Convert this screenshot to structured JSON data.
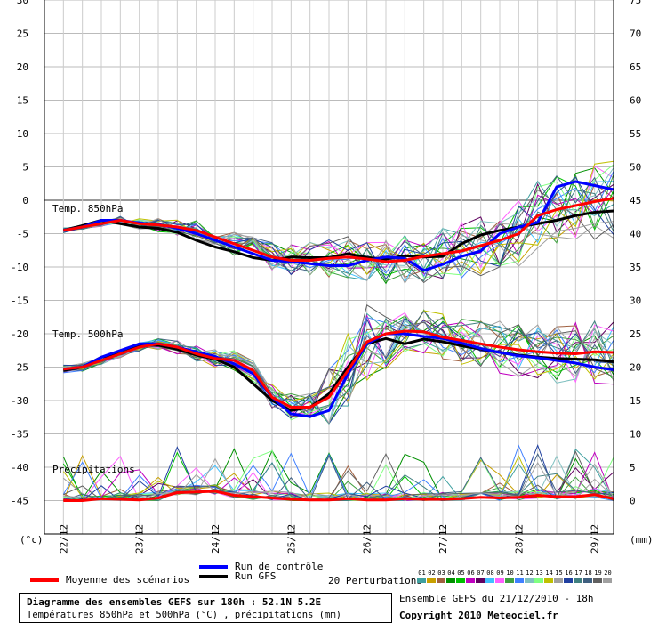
{
  "chart_data": {
    "type": "line",
    "x_labels": [
      "22/12",
      "23/12",
      "24/12",
      "25/12",
      "26/12",
      "27/12",
      "28/12",
      "29/12"
    ],
    "left_axis": {
      "unit": "(°c)",
      "ticks": [
        30,
        25,
        20,
        15,
        10,
        5,
        0,
        -5,
        -10,
        -15,
        -20,
        -25,
        -30,
        -35,
        -40,
        -45
      ],
      "range": [
        -50,
        30
      ]
    },
    "right_axis": {
      "unit": "(mm)",
      "ticks": [
        75,
        70,
        65,
        60,
        55,
        50,
        45,
        40,
        35,
        30,
        25,
        20,
        15,
        10,
        5,
        0
      ],
      "range": [
        -5,
        75
      ]
    },
    "x_hours": [
      6,
      180
    ],
    "panel_labels": {
      "t850": "Temp. 850hPa",
      "t500": "Temp. 500hPa",
      "precip": "Précipitations"
    },
    "series": {
      "mean_850": [
        [
          6,
          -4.5
        ],
        [
          12,
          -4
        ],
        [
          18,
          -3.5
        ],
        [
          24,
          -3
        ],
        [
          30,
          -3.5
        ],
        [
          36,
          -3.7
        ],
        [
          42,
          -4
        ],
        [
          48,
          -4.5
        ],
        [
          54,
          -5.5
        ],
        [
          60,
          -6.5
        ],
        [
          66,
          -7.5
        ],
        [
          72,
          -8.5
        ],
        [
          78,
          -9
        ],
        [
          84,
          -9
        ],
        [
          90,
          -8.7
        ],
        [
          96,
          -8.5
        ],
        [
          102,
          -8.8
        ],
        [
          108,
          -9.2
        ],
        [
          114,
          -9
        ],
        [
          120,
          -8.4
        ],
        [
          126,
          -8
        ],
        [
          132,
          -7.6
        ],
        [
          138,
          -6.8
        ],
        [
          144,
          -6
        ],
        [
          150,
          -5
        ],
        [
          156,
          -2.3
        ],
        [
          162,
          -1.4
        ],
        [
          168,
          -0.8
        ],
        [
          174,
          -0.2
        ],
        [
          180,
          0.3
        ]
      ],
      "control_850": [
        [
          6,
          -4.5
        ],
        [
          12,
          -4
        ],
        [
          18,
          -3
        ],
        [
          24,
          -3
        ],
        [
          30,
          -3.4
        ],
        [
          36,
          -3.6
        ],
        [
          42,
          -4.2
        ],
        [
          48,
          -5
        ],
        [
          54,
          -6
        ],
        [
          60,
          -7
        ],
        [
          66,
          -8
        ],
        [
          72,
          -9
        ],
        [
          78,
          -9.2
        ],
        [
          84,
          -9.5
        ],
        [
          90,
          -9.8
        ],
        [
          96,
          -9.8
        ],
        [
          102,
          -9
        ],
        [
          108,
          -8.5
        ],
        [
          114,
          -8.7
        ],
        [
          120,
          -10.5
        ],
        [
          126,
          -9.6
        ],
        [
          132,
          -8.4
        ],
        [
          138,
          -7.6
        ],
        [
          144,
          -5
        ],
        [
          150,
          -4
        ],
        [
          156,
          -3.3
        ],
        [
          162,
          2
        ],
        [
          168,
          2.8
        ],
        [
          174,
          2.2
        ],
        [
          180,
          1.6
        ]
      ],
      "gfs_850": [
        [
          6,
          -4.5
        ],
        [
          12,
          -3.8
        ],
        [
          18,
          -3
        ],
        [
          24,
          -3.5
        ],
        [
          30,
          -4
        ],
        [
          36,
          -4.2
        ],
        [
          42,
          -4.8
        ],
        [
          48,
          -6
        ],
        [
          54,
          -7
        ],
        [
          60,
          -7.7
        ],
        [
          66,
          -8.6
        ],
        [
          72,
          -9
        ],
        [
          78,
          -8.5
        ],
        [
          84,
          -8.6
        ],
        [
          90,
          -8.6
        ],
        [
          96,
          -8
        ],
        [
          102,
          -8.6
        ],
        [
          108,
          -8.8
        ],
        [
          114,
          -8.3
        ],
        [
          120,
          -8.5
        ],
        [
          126,
          -8.4
        ],
        [
          132,
          -6.5
        ],
        [
          138,
          -5.2
        ],
        [
          144,
          -4.5
        ],
        [
          150,
          -4
        ],
        [
          156,
          -3.5
        ],
        [
          162,
          -3
        ],
        [
          168,
          -2.3
        ],
        [
          174,
          -1.8
        ],
        [
          180,
          -1.6
        ]
      ],
      "mean_500": [
        [
          6,
          -25.3
        ],
        [
          12,
          -25
        ],
        [
          18,
          -24
        ],
        [
          24,
          -23
        ],
        [
          30,
          -22
        ],
        [
          36,
          -21.5
        ],
        [
          42,
          -22
        ],
        [
          48,
          -23
        ],
        [
          54,
          -23.7
        ],
        [
          60,
          -24
        ],
        [
          66,
          -25.5
        ],
        [
          72,
          -29.5
        ],
        [
          78,
          -31
        ],
        [
          84,
          -31
        ],
        [
          90,
          -29.5
        ],
        [
          96,
          -25.5
        ],
        [
          102,
          -21.2
        ],
        [
          108,
          -20
        ],
        [
          114,
          -19.6
        ],
        [
          120,
          -19.7
        ],
        [
          126,
          -20.5
        ],
        [
          132,
          -21
        ],
        [
          138,
          -21.5
        ],
        [
          144,
          -22
        ],
        [
          150,
          -22.4
        ],
        [
          156,
          -22.7
        ],
        [
          162,
          -22.9
        ],
        [
          168,
          -23
        ],
        [
          174,
          -22.7
        ],
        [
          180,
          -22.8
        ]
      ],
      "control_500": [
        [
          6,
          -25.3
        ],
        [
          12,
          -25
        ],
        [
          18,
          -23.5
        ],
        [
          24,
          -22.5
        ],
        [
          30,
          -21.5
        ],
        [
          36,
          -21.5
        ],
        [
          42,
          -22
        ],
        [
          48,
          -22.7
        ],
        [
          54,
          -23.4
        ],
        [
          60,
          -24.5
        ],
        [
          66,
          -26
        ],
        [
          72,
          -29.5
        ],
        [
          78,
          -32
        ],
        [
          84,
          -32.4
        ],
        [
          90,
          -31.5
        ],
        [
          96,
          -26
        ],
        [
          102,
          -21.5
        ],
        [
          108,
          -20
        ],
        [
          114,
          -20
        ],
        [
          120,
          -20.4
        ],
        [
          126,
          -20.7
        ],
        [
          132,
          -21.4
        ],
        [
          138,
          -22.2
        ],
        [
          144,
          -22.8
        ],
        [
          150,
          -23.3
        ],
        [
          156,
          -23.6
        ],
        [
          162,
          -24
        ],
        [
          168,
          -24.4
        ],
        [
          174,
          -25
        ],
        [
          180,
          -25.4
        ]
      ],
      "gfs_500": [
        [
          6,
          -25.5
        ],
        [
          12,
          -25
        ],
        [
          18,
          -23.5
        ],
        [
          24,
          -23
        ],
        [
          30,
          -21.8
        ],
        [
          36,
          -21.7
        ],
        [
          42,
          -22.3
        ],
        [
          48,
          -23.2
        ],
        [
          54,
          -23.8
        ],
        [
          60,
          -25
        ],
        [
          66,
          -27.5
        ],
        [
          72,
          -30
        ],
        [
          78,
          -31.5
        ],
        [
          84,
          -31
        ],
        [
          90,
          -29
        ],
        [
          96,
          -25
        ],
        [
          102,
          -21.5
        ],
        [
          108,
          -20.7
        ],
        [
          114,
          -21.5
        ],
        [
          120,
          -20.8
        ],
        [
          126,
          -21.2
        ],
        [
          132,
          -21.8
        ],
        [
          138,
          -22.3
        ],
        [
          144,
          -22.8
        ],
        [
          150,
          -23.2
        ],
        [
          156,
          -23.5
        ],
        [
          162,
          -23.7
        ],
        [
          168,
          -23.8
        ],
        [
          174,
          -23.9
        ],
        [
          180,
          -24.2
        ]
      ],
      "mean_precip": [
        [
          6,
          0
        ],
        [
          12,
          0
        ],
        [
          18,
          0.3
        ],
        [
          24,
          0.2
        ],
        [
          30,
          0.1
        ],
        [
          36,
          0.4
        ],
        [
          42,
          1.2
        ],
        [
          48,
          1.3
        ],
        [
          54,
          1.4
        ],
        [
          60,
          0.8
        ],
        [
          66,
          0.6
        ],
        [
          72,
          0.4
        ],
        [
          78,
          0.2
        ],
        [
          84,
          0.1
        ],
        [
          90,
          0.1
        ],
        [
          96,
          0.3
        ],
        [
          102,
          0.1
        ],
        [
          108,
          0.1
        ],
        [
          114,
          0.3
        ],
        [
          120,
          0.2
        ],
        [
          126,
          0.2
        ],
        [
          132,
          0.3
        ],
        [
          138,
          0.5
        ],
        [
          144,
          0.4
        ],
        [
          150,
          0.5
        ],
        [
          156,
          0.8
        ],
        [
          162,
          0.6
        ],
        [
          168,
          0.6
        ],
        [
          174,
          0.9
        ],
        [
          180,
          0.3
        ]
      ]
    }
  },
  "legend": {
    "mean_label": "Moyenne des scénarios",
    "control_label": "Run de contrôle",
    "gfs_label": "Run GFS",
    "perturbations_label": "20 Perturbations",
    "perturbation_numbers": [
      "01",
      "02",
      "03",
      "04",
      "05",
      "06",
      "07",
      "08",
      "09",
      "10",
      "11",
      "12",
      "13",
      "14",
      "15",
      "16",
      "17",
      "18",
      "19",
      "20"
    ],
    "perturbation_colors": [
      "#3fa0a0",
      "#c8a000",
      "#a06040",
      "#009000",
      "#00c000",
      "#c000c0",
      "#600060",
      "#40c0ff",
      "#ff60ff",
      "#40a040",
      "#4080ff",
      "#80c0c0",
      "#80ff80",
      "#c0c000",
      "#a0a0a0",
      "#2040a0",
      "#408080",
      "#406080",
      "#606060",
      "#a0a0a0"
    ]
  },
  "colors": {
    "mean": "#ff0000",
    "control": "#0000ff",
    "gfs": "#000000"
  },
  "footer": {
    "title": "Diagramme des ensembles GEFS sur 180h : 52.1N 5.2E",
    "subtitle": "Températures 850hPa et 500hPa (°C) , précipitations (mm)",
    "run_info": "Ensemble GEFS du 21/12/2010 - 18h",
    "copyright": "Copyright 2010 Meteociel.fr"
  }
}
